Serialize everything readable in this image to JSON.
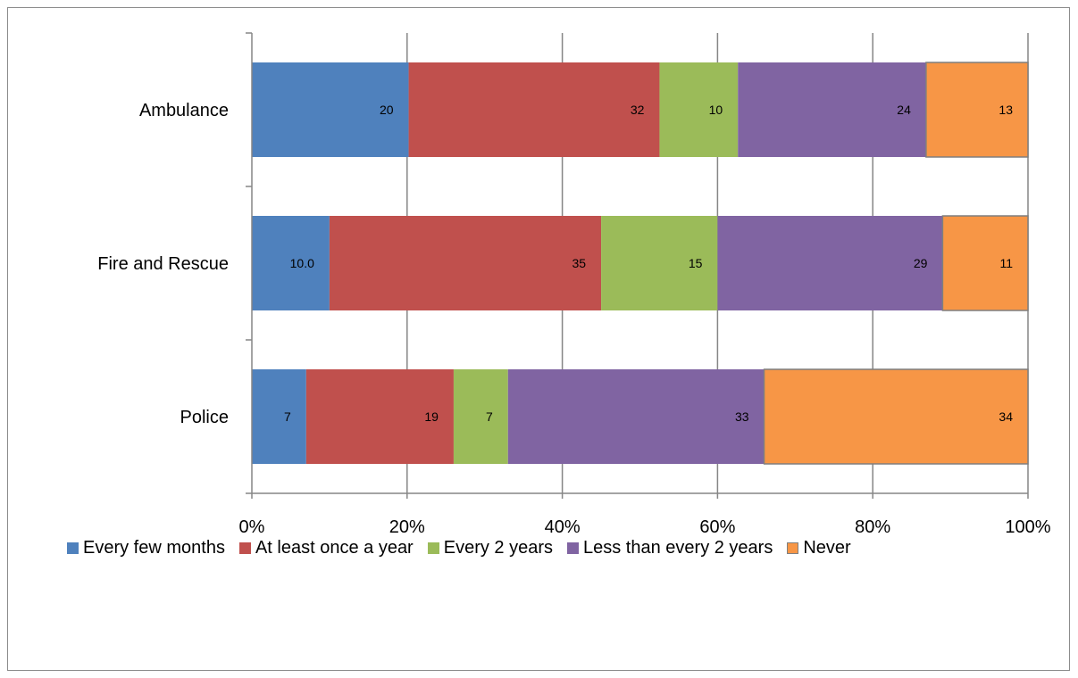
{
  "chart_data": {
    "type": "bar",
    "orientation": "horizontal",
    "stacked": "percent",
    "categories": [
      "Ambulance",
      "Fire and Rescue",
      "Police"
    ],
    "series": [
      {
        "name": "Every few months",
        "color": "#4f81bd",
        "values": [
          20,
          10.0,
          7
        ],
        "labels": [
          "20",
          "10.0",
          "7"
        ]
      },
      {
        "name": "At least once a year",
        "color": "#c0504d",
        "values": [
          32,
          35,
          19
        ],
        "labels": [
          "32",
          "35",
          "19"
        ]
      },
      {
        "name": "Every 2 years",
        "color": "#9bbb59",
        "values": [
          10,
          15,
          7
        ],
        "labels": [
          "10",
          "15",
          "7"
        ]
      },
      {
        "name": "Less than every 2 years",
        "color": "#8064a2",
        "values": [
          24,
          29,
          33
        ],
        "labels": [
          "24",
          "29",
          "33"
        ]
      },
      {
        "name": "Never",
        "color": "#f79646",
        "values": [
          13,
          11,
          34
        ],
        "labels": [
          "13",
          "11",
          "34"
        ]
      }
    ],
    "xaxis": {
      "ticks": [
        "0%",
        "20%",
        "40%",
        "60%",
        "80%",
        "100%"
      ],
      "range": [
        0,
        100
      ]
    },
    "title": "",
    "xlabel": "",
    "ylabel": "",
    "grid": "vertical",
    "legend": "bottom"
  }
}
